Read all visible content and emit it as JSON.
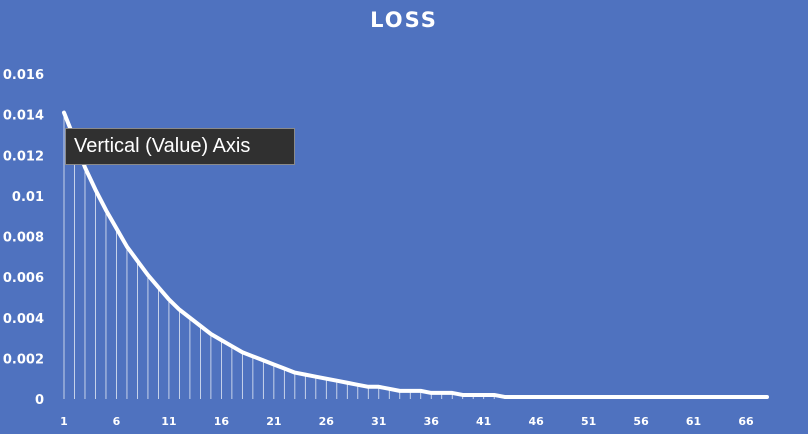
{
  "chart_data": {
    "type": "line",
    "title": "LOSS",
    "xlabel": "",
    "ylabel": "",
    "ylim": [
      0,
      0.016
    ],
    "y_ticks": [
      "0",
      "0.002",
      "0.004",
      "0.006",
      "0.008",
      "0.01",
      "0.012",
      "0.014",
      "0.016"
    ],
    "x_tick_labels": [
      "1",
      "6",
      "11",
      "16",
      "21",
      "26",
      "31",
      "36",
      "41",
      "46",
      "51",
      "56",
      "61",
      "66"
    ],
    "x": [
      1,
      2,
      3,
      4,
      5,
      6,
      7,
      8,
      9,
      10,
      11,
      12,
      13,
      14,
      15,
      16,
      17,
      18,
      19,
      20,
      21,
      22,
      23,
      24,
      25,
      26,
      27,
      28,
      29,
      30,
      31,
      32,
      33,
      34,
      35,
      36,
      37,
      38,
      39,
      40,
      41,
      42,
      43,
      44,
      45,
      46,
      47,
      48,
      49,
      50,
      51,
      52,
      53,
      54,
      55,
      56,
      57,
      58,
      59,
      60,
      61,
      62,
      63,
      64,
      65,
      66,
      67,
      68
    ],
    "series": [
      {
        "values": [
          0.0141,
          0.0128,
          0.0114,
          0.0103,
          0.0093,
          0.0084,
          0.0075,
          0.0068,
          0.0061,
          0.0055,
          0.0049,
          0.0044,
          0.004,
          0.0036,
          0.0032,
          0.0029,
          0.0026,
          0.0023,
          0.0021,
          0.0019,
          0.0017,
          0.0015,
          0.0013,
          0.0012,
          0.0011,
          0.001,
          0.0009,
          0.0008,
          0.0007,
          0.0006,
          0.0006,
          0.0005,
          0.0004,
          0.0004,
          0.0004,
          0.0003,
          0.0003,
          0.0003,
          0.0002,
          0.0002,
          0.0002,
          0.0002,
          0.0001,
          0.0001,
          0.0001,
          0.0001,
          0.0001,
          0.0001,
          0.0001,
          0.0001,
          0.0001,
          0.0001,
          0.0001,
          0.0001,
          0.0001,
          0.0001,
          0.0001,
          0.0001,
          0.0001,
          0.0001,
          0.0001,
          0.0001,
          0.0001,
          0.0001,
          0.0001,
          0.0001,
          0.0001,
          0.0001
        ]
      }
    ],
    "drop_lines": true,
    "grid": false,
    "colors": {
      "background": "#4f72bf",
      "line": "#ffffff"
    }
  },
  "tooltip": {
    "text": "Vertical (Value) Axis"
  }
}
